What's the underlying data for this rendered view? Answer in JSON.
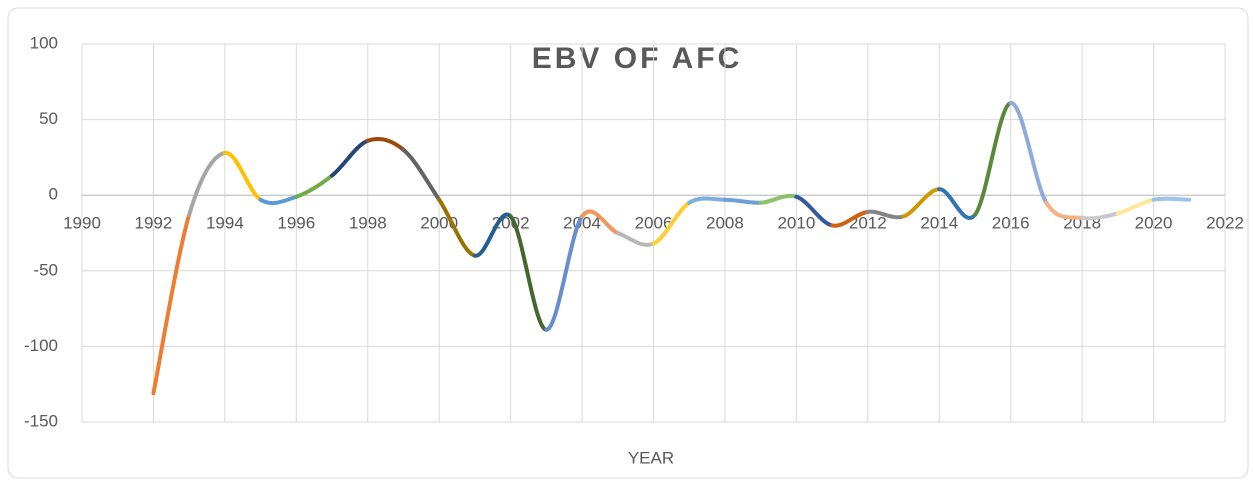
{
  "chart_data": {
    "type": "scatter-smooth-line",
    "title": "EBV OF AFC",
    "x_label": "YEAR",
    "x": [
      1992,
      1993,
      1994,
      1995,
      1996,
      1997,
      1998,
      1999,
      2000,
      2001,
      2002,
      2003,
      2004,
      2005,
      2006,
      2007,
      2008,
      2009,
      2010,
      2011,
      2012,
      2013,
      2014,
      2015,
      2016,
      2017,
      2018,
      2019,
      2020,
      2021
    ],
    "values": [
      -131,
      -13,
      28,
      -3,
      -1,
      13,
      36,
      30,
      -3,
      -40,
      -14,
      -89,
      -14,
      -25,
      -32,
      -5,
      -3,
      -5,
      -1,
      -20,
      -11,
      -14,
      4,
      -13,
      61,
      -5,
      -15,
      -12,
      -3,
      -3
    ],
    "segment_colors": [
      "#ED7D31",
      "#A5A5A5",
      "#FFC000",
      "#5B9BD5",
      "#70AD47",
      "#264478",
      "#9E480E",
      "#636363",
      "#997300",
      "#255E91",
      "#43682B",
      "#698ED0",
      "#F1975A",
      "#B7B7B7",
      "#FFCD33",
      "#7CAFDD",
      "#6F9FD8",
      "#8CC168",
      "#335AA1",
      "#D26012",
      "#848484",
      "#CC9A00",
      "#3275B6",
      "#5A8A39",
      "#8FAADC",
      "#F4B183",
      "#C9C9C9",
      "#FFE699",
      "#9DC3E6"
    ],
    "xlim": [
      1990,
      2022
    ],
    "xticks": [
      1990,
      1992,
      1994,
      1996,
      1998,
      2000,
      2002,
      2004,
      2006,
      2008,
      2010,
      2012,
      2014,
      2016,
      2018,
      2020,
      2022
    ],
    "ylim": [
      -150,
      100
    ],
    "yticks": [
      -150,
      -100,
      -50,
      0,
      50,
      100
    ],
    "grid": true
  }
}
